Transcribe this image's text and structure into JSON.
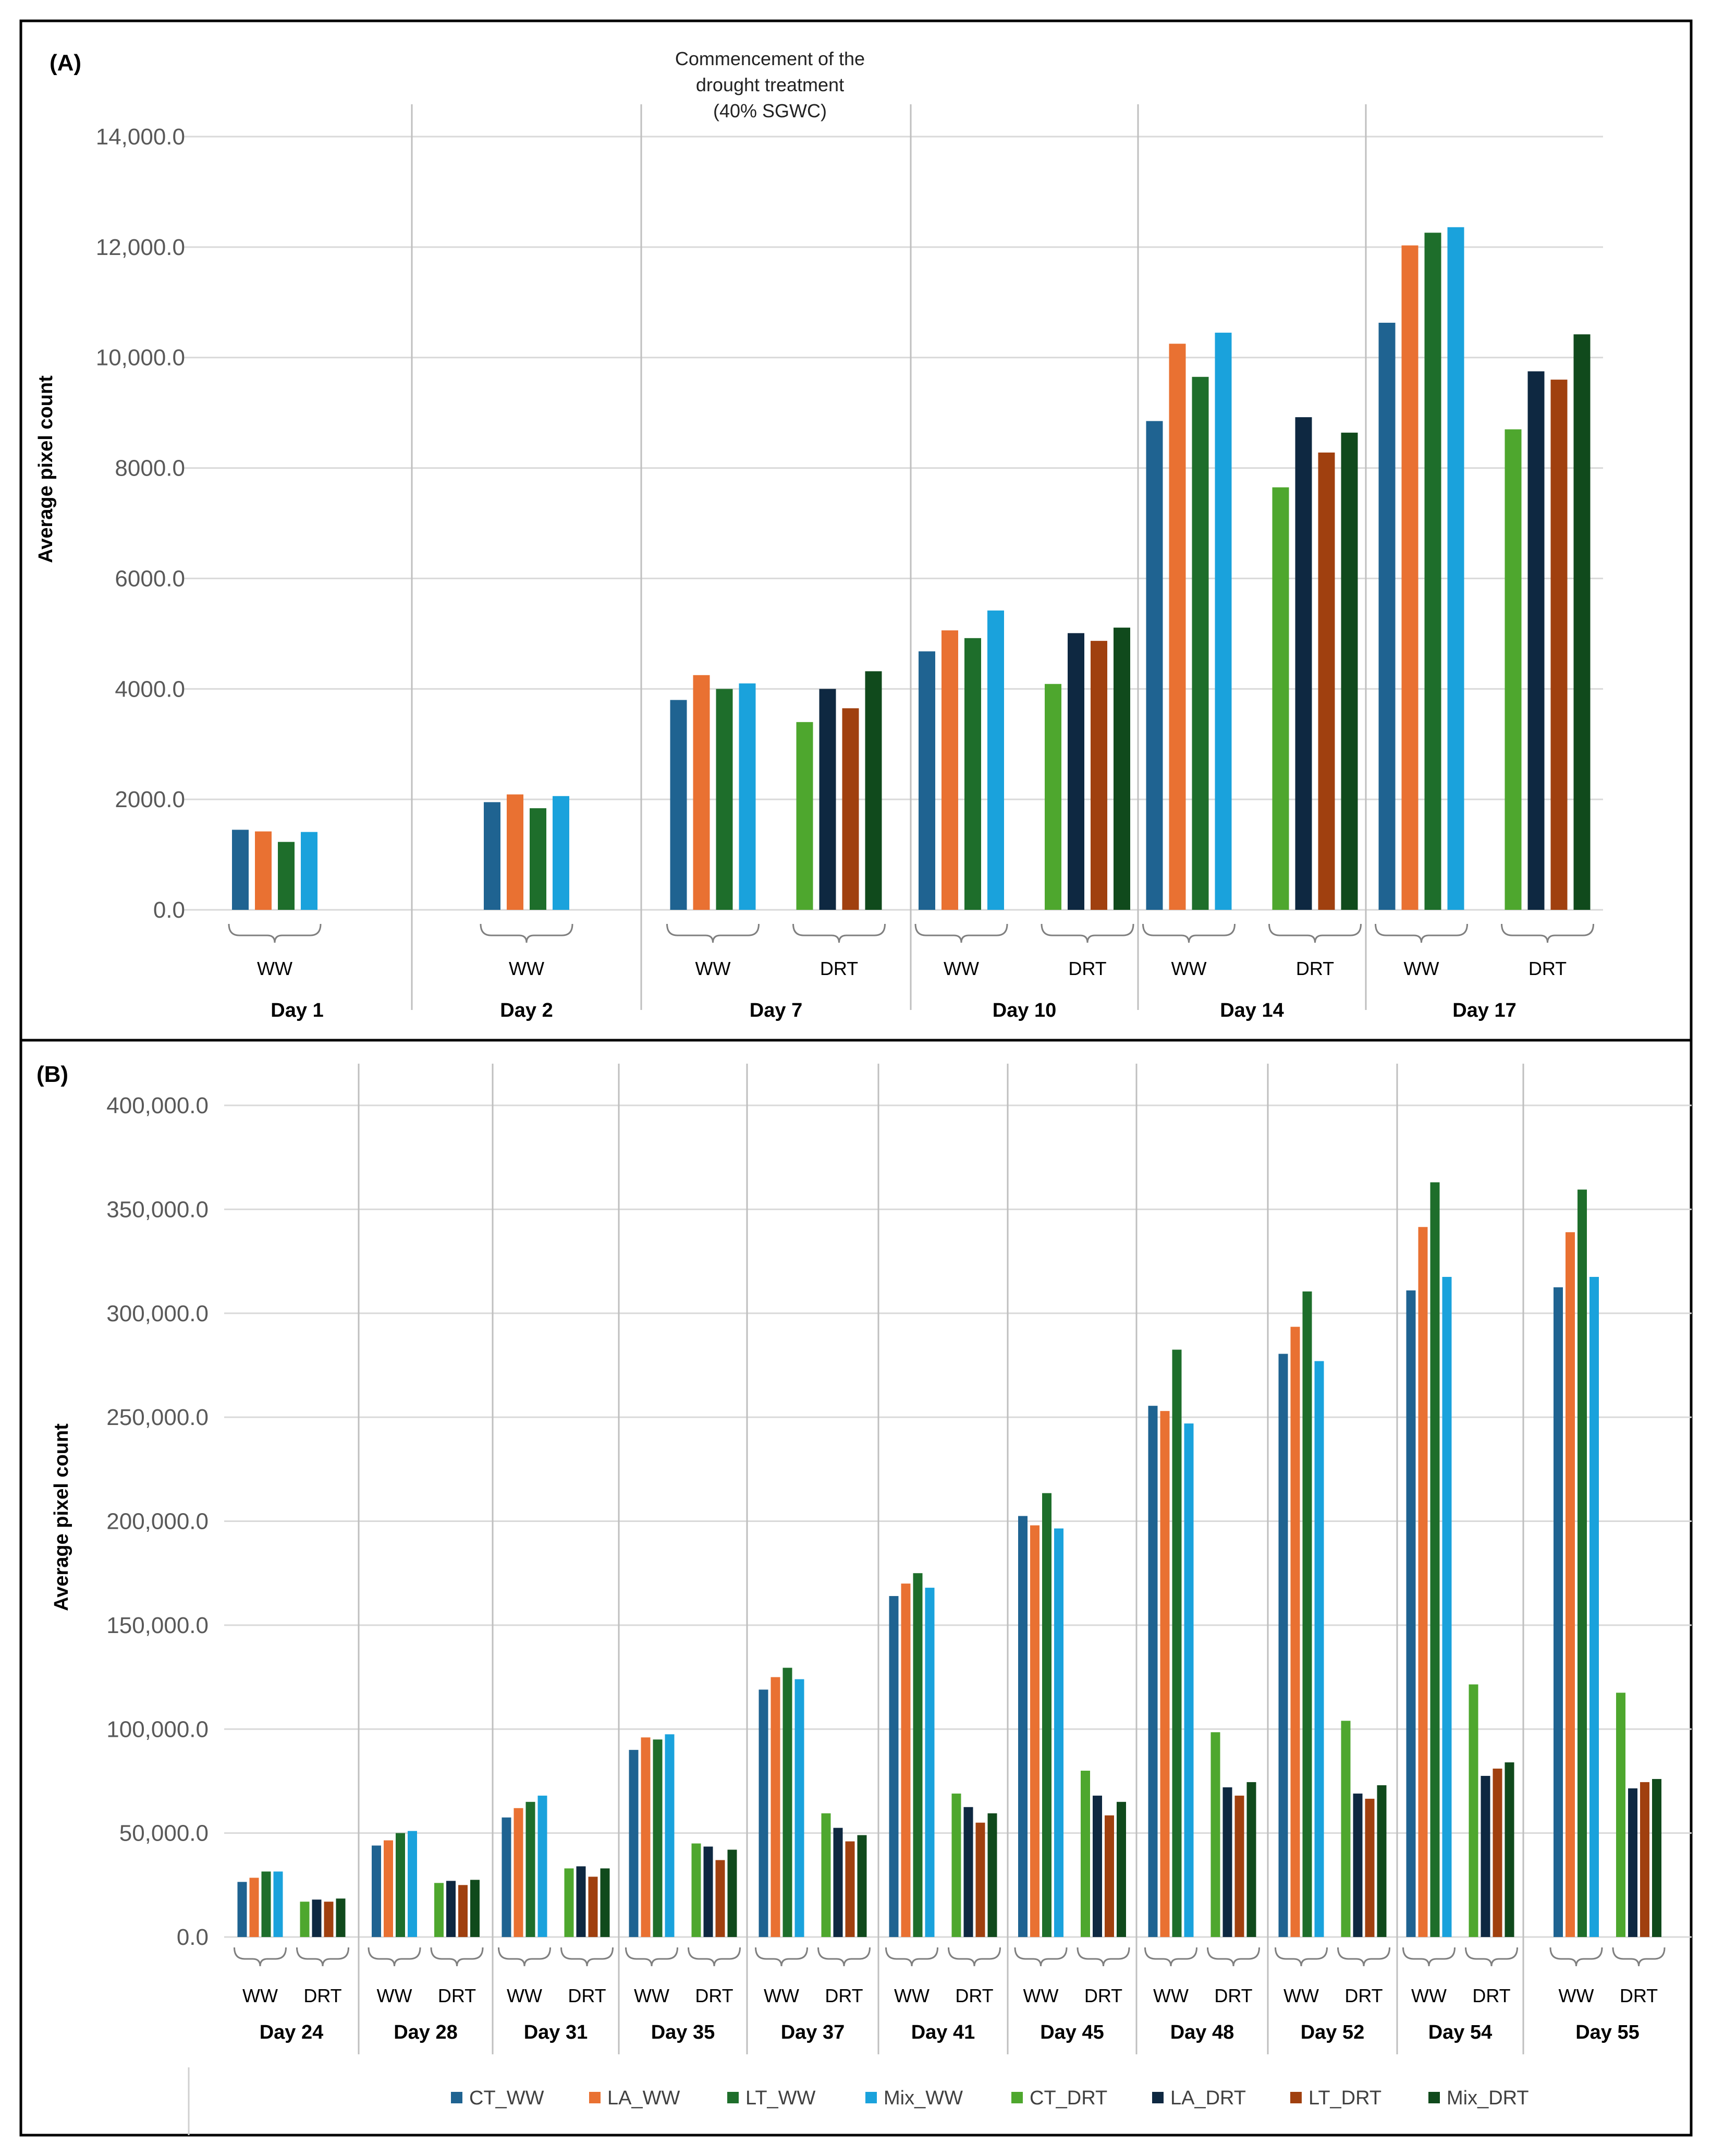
{
  "colors": {
    "CT_WW": "#1f6391",
    "LA_WW": "#e97132",
    "LT_WW": "#1e6e2b",
    "Mix_WW": "#1aa2dc",
    "CT_DRT": "#4ea72e",
    "LA_DRT": "#0e2841",
    "LT_DRT": "#a0400f",
    "Mix_DRT": "#104a1c"
  },
  "legend": [
    "CT_WW",
    "LA_WW",
    "LT_WW",
    "Mix_WW",
    "CT_DRT",
    "LA_DRT",
    "LT_DRT",
    "Mix_DRT"
  ],
  "annotation": [
    "Commencement of the",
    "drought treatment",
    "(40% SGWC)"
  ],
  "chart_data": [
    {
      "type": "bar",
      "panel_label": "(A)",
      "ylabel": "Average pixel count",
      "ylim": [
        0,
        14000
      ],
      "yticks": [
        0,
        2000,
        4000,
        6000,
        8000,
        10000,
        12000,
        14000
      ],
      "ytick_labels": [
        "0.0",
        "2000.0",
        "4000.0",
        "6000.0",
        "8000.0",
        "10,000.0",
        "12,000.0",
        "14,000.0"
      ],
      "grid": true,
      "days": [
        {
          "label": "Day 1",
          "groups": [
            {
              "label": "WW",
              "series": [
                "CT_WW",
                "LA_WW",
                "LT_WW",
                "Mix_WW"
              ],
              "values": [
                1450,
                1420,
                1230,
                1410
              ]
            }
          ]
        },
        {
          "label": "Day 2",
          "groups": [
            {
              "label": "WW",
              "series": [
                "CT_WW",
                "LA_WW",
                "LT_WW",
                "Mix_WW"
              ],
              "values": [
                1950,
                2090,
                1840,
                2060
              ]
            }
          ]
        },
        {
          "label": "Day 7",
          "groups": [
            {
              "label": "WW",
              "series": [
                "CT_WW",
                "LA_WW",
                "LT_WW",
                "Mix_WW"
              ],
              "values": [
                3800,
                4250,
                4000,
                4100
              ]
            },
            {
              "label": "DRT",
              "series": [
                "CT_DRT",
                "LA_DRT",
                "LT_DRT",
                "Mix_DRT"
              ],
              "values": [
                3400,
                4000,
                3650,
                4320
              ]
            }
          ]
        },
        {
          "label": "Day 10",
          "groups": [
            {
              "label": "WW",
              "series": [
                "CT_WW",
                "LA_WW",
                "LT_WW",
                "Mix_WW"
              ],
              "values": [
                4680,
                5060,
                4920,
                5420
              ]
            },
            {
              "label": "DRT",
              "series": [
                "CT_DRT",
                "LA_DRT",
                "LT_DRT",
                "Mix_DRT"
              ],
              "values": [
                4090,
                5010,
                4870,
                5110
              ]
            }
          ]
        },
        {
          "label": "Day 14",
          "groups": [
            {
              "label": "WW",
              "series": [
                "CT_WW",
                "LA_WW",
                "LT_WW",
                "Mix_WW"
              ],
              "values": [
                8850,
                10250,
                9650,
                10450
              ]
            },
            {
              "label": "DRT",
              "series": [
                "CT_DRT",
                "LA_DRT",
                "LT_DRT",
                "Mix_DRT"
              ],
              "values": [
                7650,
                8920,
                8280,
                8640
              ]
            }
          ]
        },
        {
          "label": "Day 17",
          "groups": [
            {
              "label": "WW",
              "series": [
                "CT_WW",
                "LA_WW",
                "LT_WW",
                "Mix_WW"
              ],
              "values": [
                10630,
                12030,
                12260,
                12360
              ]
            },
            {
              "label": "DRT",
              "series": [
                "CT_DRT",
                "LA_DRT",
                "LT_DRT",
                "Mix_DRT"
              ],
              "values": [
                8700,
                9750,
                9600,
                10420
              ]
            }
          ]
        }
      ]
    },
    {
      "type": "bar",
      "panel_label": "(B)",
      "ylabel": "Average pixel count",
      "ylim": [
        0,
        400000
      ],
      "yticks": [
        0,
        50000,
        100000,
        150000,
        200000,
        250000,
        300000,
        350000,
        400000
      ],
      "ytick_labels": [
        "0.0",
        "50,000.0",
        "100,000.0",
        "150,000.0",
        "200,000.0",
        "250,000.0",
        "300,000.0",
        "350,000.0",
        "400,000.0"
      ],
      "grid": true,
      "days": [
        {
          "label": "Day 24",
          "groups": [
            {
              "label": "WW",
              "series": [
                "CT_WW",
                "LA_WW",
                "LT_WW",
                "Mix_WW"
              ],
              "values": [
                26500,
                28500,
                31500,
                31500
              ]
            },
            {
              "label": "DRT",
              "series": [
                "CT_DRT",
                "LA_DRT",
                "LT_DRT",
                "Mix_DRT"
              ],
              "values": [
                17000,
                18000,
                17000,
                18500
              ]
            }
          ]
        },
        {
          "label": "Day 28",
          "groups": [
            {
              "label": "WW",
              "series": [
                "CT_WW",
                "LA_WW",
                "LT_WW",
                "Mix_WW"
              ],
              "values": [
                44000,
                46500,
                50000,
                51000
              ]
            },
            {
              "label": "DRT",
              "series": [
                "CT_DRT",
                "LA_DRT",
                "LT_DRT",
                "Mix_DRT"
              ],
              "values": [
                26000,
                27000,
                25000,
                27500
              ]
            }
          ]
        },
        {
          "label": "Day 31",
          "groups": [
            {
              "label": "WW",
              "series": [
                "CT_WW",
                "LA_WW",
                "LT_WW",
                "Mix_WW"
              ],
              "values": [
                57500,
                62000,
                65000,
                68000
              ]
            },
            {
              "label": "DRT",
              "series": [
                "CT_DRT",
                "LA_DRT",
                "LT_DRT",
                "Mix_DRT"
              ],
              "values": [
                33000,
                34000,
                29000,
                33000
              ]
            }
          ]
        },
        {
          "label": "Day 35",
          "groups": [
            {
              "label": "WW",
              "series": [
                "CT_WW",
                "LA_WW",
                "LT_WW",
                "Mix_WW"
              ],
              "values": [
                90000,
                96000,
                95000,
                97500
              ]
            },
            {
              "label": "DRT",
              "series": [
                "CT_DRT",
                "LA_DRT",
                "LT_DRT",
                "Mix_DRT"
              ],
              "values": [
                45000,
                43500,
                37000,
                42000
              ]
            }
          ]
        },
        {
          "label": "Day 37",
          "groups": [
            {
              "label": "WW",
              "series": [
                "CT_WW",
                "LA_WW",
                "LT_WW",
                "Mix_WW"
              ],
              "values": [
                119000,
                125000,
                129500,
                124000
              ]
            },
            {
              "label": "DRT",
              "series": [
                "CT_DRT",
                "LA_DRT",
                "LT_DRT",
                "Mix_DRT"
              ],
              "values": [
                59500,
                52500,
                46000,
                49000
              ]
            }
          ]
        },
        {
          "label": "Day 41",
          "groups": [
            {
              "label": "WW",
              "series": [
                "CT_WW",
                "LA_WW",
                "LT_WW",
                "Mix_WW"
              ],
              "values": [
                164000,
                170000,
                175000,
                168000
              ]
            },
            {
              "label": "DRT",
              "series": [
                "CT_DRT",
                "LA_DRT",
                "LT_DRT",
                "Mix_DRT"
              ],
              "values": [
                69000,
                62500,
                55000,
                59500
              ]
            }
          ]
        },
        {
          "label": "Day 45",
          "groups": [
            {
              "label": "WW",
              "series": [
                "CT_WW",
                "LA_WW",
                "LT_WW",
                "Mix_WW"
              ],
              "values": [
                202500,
                198000,
                213500,
                196500
              ]
            },
            {
              "label": "DRT",
              "series": [
                "CT_DRT",
                "LA_DRT",
                "LT_DRT",
                "Mix_DRT"
              ],
              "values": [
                80000,
                68000,
                58500,
                65000
              ]
            }
          ]
        },
        {
          "label": "Day 48",
          "groups": [
            {
              "label": "WW",
              "series": [
                "CT_WW",
                "LA_WW",
                "LT_WW",
                "Mix_WW"
              ],
              "values": [
                255500,
                253000,
                282500,
                247000
              ]
            },
            {
              "label": "DRT",
              "series": [
                "CT_DRT",
                "LA_DRT",
                "LT_DRT",
                "Mix_DRT"
              ],
              "values": [
                98500,
                72000,
                68000,
                74500
              ]
            }
          ]
        },
        {
          "label": "Day 52",
          "groups": [
            {
              "label": "WW",
              "series": [
                "CT_WW",
                "LA_WW",
                "LT_WW",
                "Mix_WW"
              ],
              "values": [
                280500,
                293500,
                310500,
                277000
              ]
            },
            {
              "label": "DRT",
              "series": [
                "CT_DRT",
                "LA_DRT",
                "LT_DRT",
                "Mix_DRT"
              ],
              "values": [
                104000,
                69000,
                66500,
                73000
              ]
            }
          ]
        },
        {
          "label": "Day 54",
          "groups": [
            {
              "label": "WW",
              "series": [
                "CT_WW",
                "LA_WW",
                "LT_WW",
                "Mix_WW"
              ],
              "values": [
                311000,
                341500,
                363000,
                317500
              ]
            },
            {
              "label": "DRT",
              "series": [
                "CT_DRT",
                "LA_DRT",
                "LT_DRT",
                "Mix_DRT"
              ],
              "values": [
                121500,
                77500,
                81000,
                84000
              ]
            }
          ]
        },
        {
          "label": "Day 55",
          "groups": [
            {
              "label": "WW",
              "series": [
                "CT_WW",
                "LA_WW",
                "LT_WW",
                "Mix_WW"
              ],
              "values": [
                312500,
                339000,
                359500,
                317500
              ]
            },
            {
              "label": "DRT",
              "series": [
                "CT_DRT",
                "LA_DRT",
                "LT_DRT",
                "Mix_DRT"
              ],
              "values": [
                117500,
                71500,
                74500,
                76000
              ]
            }
          ]
        }
      ]
    }
  ]
}
